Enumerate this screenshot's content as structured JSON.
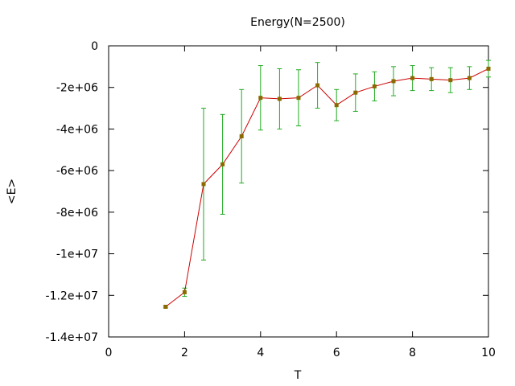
{
  "chart_data": {
    "type": "line",
    "title": "Energy(N=2500)",
    "xlabel": "T",
    "ylabel": "<E>",
    "xlim": [
      0,
      10
    ],
    "ylim": [
      -14000000,
      0
    ],
    "x_ticks": [
      {
        "value": 0,
        "label": "0"
      },
      {
        "value": 2,
        "label": "2"
      },
      {
        "value": 4,
        "label": "4"
      },
      {
        "value": 6,
        "label": "6"
      },
      {
        "value": 8,
        "label": "8"
      },
      {
        "value": 10,
        "label": "10"
      }
    ],
    "y_ticks": [
      {
        "value": 0,
        "label": "0"
      },
      {
        "value": -2000000,
        "label": "-2e+06"
      },
      {
        "value": -4000000,
        "label": "-4e+06"
      },
      {
        "value": -6000000,
        "label": "-6e+06"
      },
      {
        "value": -8000000,
        "label": "-8e+06"
      },
      {
        "value": -10000000,
        "label": "-1e+07"
      },
      {
        "value": -12000000,
        "label": "-1.2e+07"
      },
      {
        "value": -14000000,
        "label": "-1.4e+07"
      }
    ],
    "grid": false,
    "legend": "none",
    "line_color": "#cc0000",
    "errorbar_color": "#22aa22",
    "marker_color": "#8a6a00",
    "series": [
      {
        "x": [
          1.5,
          2.0,
          2.5,
          3.0,
          3.5,
          4.0,
          4.5,
          5.0,
          5.5,
          6.0,
          6.5,
          7.0,
          7.5,
          8.0,
          8.5,
          9.0,
          9.5,
          10.0
        ],
        "y": [
          -12550000,
          -11850000,
          -6650000,
          -5700000,
          -4350000,
          -2500000,
          -2550000,
          -2500000,
          -1900000,
          -2850000,
          -2250000,
          -1950000,
          -1700000,
          -1550000,
          -1600000,
          -1650000,
          -1550000,
          -1100000
        ],
        "y_err": [
          50000,
          200000,
          3650000,
          2400000,
          2250000,
          1550000,
          1450000,
          1350000,
          1100000,
          750000,
          900000,
          700000,
          700000,
          600000,
          550000,
          600000,
          550000,
          400000
        ]
      }
    ]
  }
}
